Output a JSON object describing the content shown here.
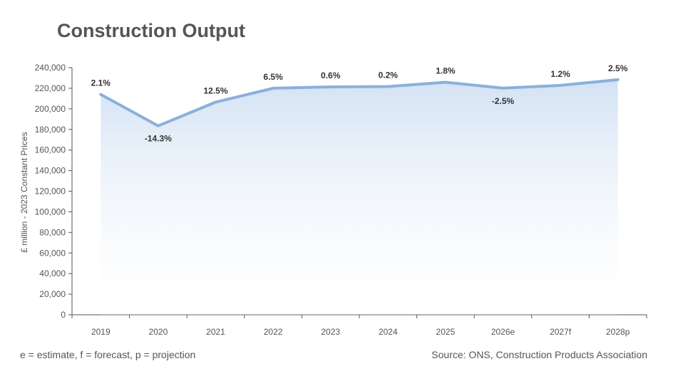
{
  "title": "Construction Output",
  "footnote": "e = estimate, f = forecast, p = projection",
  "source": "Source: ONS, Construction Products Association",
  "chart_data": {
    "type": "area",
    "title": "Construction Output",
    "ylabel": "£ million - 2023 Constant Prices",
    "xlabel": "",
    "ylim": [
      0,
      240000
    ],
    "yticks": [
      0,
      20000,
      40000,
      60000,
      80000,
      100000,
      120000,
      140000,
      160000,
      180000,
      200000,
      220000,
      240000
    ],
    "ytick_labels": [
      "0",
      "20,000",
      "40,000",
      "60,000",
      "80,000",
      "100,000",
      "120,000",
      "140,000",
      "160,000",
      "180,000",
      "200,000",
      "220,000",
      "240,000"
    ],
    "categories": [
      "2019",
      "2020",
      "2021",
      "2022",
      "2023",
      "2024",
      "2025",
      "2026e",
      "2027f",
      "2028p"
    ],
    "values": [
      214000,
      183500,
      206500,
      220000,
      221300,
      221700,
      225800,
      220100,
      222800,
      228300
    ],
    "data_labels": [
      "2.1%",
      "-14.3%",
      "12.5%",
      "6.5%",
      "0.6%",
      "0.2%",
      "1.8%",
      "-2.5%",
      "1.2%",
      "2.5%"
    ],
    "line_color": "#8ab0dc",
    "fill_color_top": "#d3e2f3",
    "grid": false
  }
}
